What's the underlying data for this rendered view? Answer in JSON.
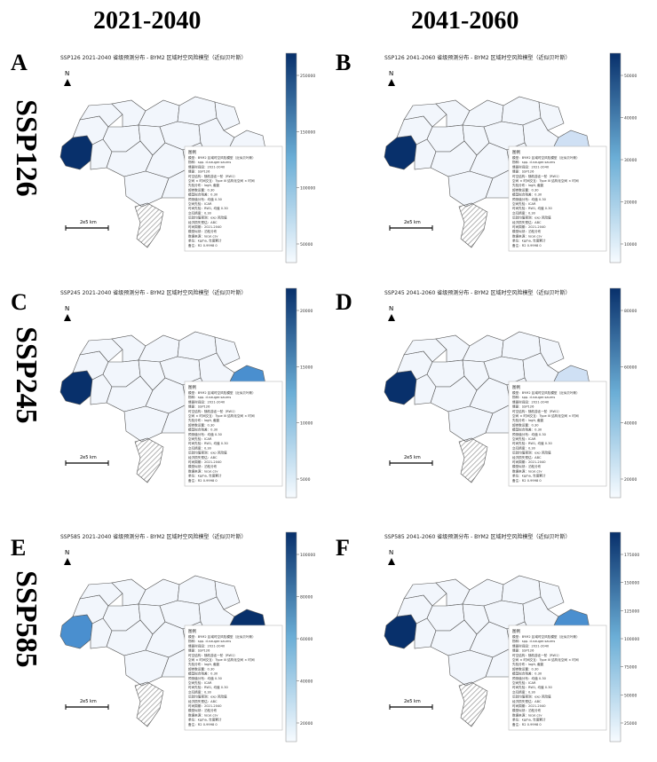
{
  "columns": [
    "2021-2040",
    "2041-2060"
  ],
  "rows": [
    "SSP126",
    "SSP245",
    "SSP585"
  ],
  "colors": {
    "base": "#f2f6fc",
    "dark": "#08306b",
    "mid": "#4a8fcf",
    "light": "#cfe0f4",
    "border": "#555555",
    "hatch": "#999999"
  },
  "panels": [
    {
      "letter": "A",
      "title": "SSP126  2021-2040  省级预测分布 - BYM2 区域时空风险模型（近似贝叶斯）",
      "scale": "2e5 km",
      "west": "dark",
      "east": "base",
      "central": "base",
      "ticks": [
        "250000",
        "150000",
        "100000",
        "50000"
      ]
    },
    {
      "letter": "B",
      "title": "SSP126  2041-2060  省级预测分布 - BYM2 区域时空风险模型（近似贝叶斯）",
      "scale": "2e5 km",
      "west": "dark",
      "east": "light",
      "central": "base",
      "ticks": [
        "50000",
        "40000",
        "30000",
        "20000",
        "10000"
      ]
    },
    {
      "letter": "C",
      "title": "SSP245  2021-2040  省级预测分布 - BYM2 区域时空风险模型（近似贝叶斯）",
      "scale": "2e5 km",
      "west": "dark",
      "east": "mid",
      "central": "base",
      "ticks": [
        "20000",
        "15000",
        "10000",
        "5000"
      ]
    },
    {
      "letter": "D",
      "title": "SSP245  2041-2060  省级预测分布 - BYM2 区域时空风险模型（近似贝叶斯）",
      "scale": "2e5 km",
      "west": "dark",
      "east": "light",
      "central": "base",
      "ticks": [
        "80000",
        "60000",
        "40000",
        "20000"
      ]
    },
    {
      "letter": "E",
      "title": "SSP585  2021-2040  省级预测分布 - BYM2 区域时空风险模型（近似贝叶斯）",
      "scale": "2e5 km",
      "west": "mid",
      "east": "dark",
      "central": "base",
      "ticks": [
        "100000",
        "80000",
        "60000",
        "40000",
        "20000"
      ]
    },
    {
      "letter": "F",
      "title": "SSP585  2041-2060  省级预测分布 - BYM2 区域时空风险模型（近似贝叶斯）",
      "scale": "2e5 km",
      "west": "dark",
      "east": "mid",
      "central": "base",
      "ticks": [
        "175000",
        "150000",
        "125000",
        "100000",
        "75000",
        "50000",
        "25000"
      ]
    }
  ],
  "north_label": "N",
  "legend_title": "图例",
  "legend_lines": [
    "模型：BYM2 区域时空风险模型（近似贝叶斯）",
    "物种：spp. d.nauger.saums",
    "情景时间段：2021-2040",
    "情景：SSP126",
    "时空结构：随机游走一阶（RW1）",
    "空间 × 时间交互：Type III 结构化空间 × 时间",
    "先验分布：logit, 截距",
    "超参数设置：0.30",
    "模型拟合残差：0.30",
    "预测值分布：均值 0.30",
    "空间先验：ICAR",
    "时间先验：RW1, 均值 0.30",
    "交互精度：0.30",
    "后验均值预测：exp 风险值",
    "经济损失预估：ABC",
    "时间周期：2021-2040",
    "模型似然：泊松分布",
    "数据来源：local.csv",
    "单位：kg/ha, 年度累计",
    "备注：R2 0.9998 0"
  ]
}
